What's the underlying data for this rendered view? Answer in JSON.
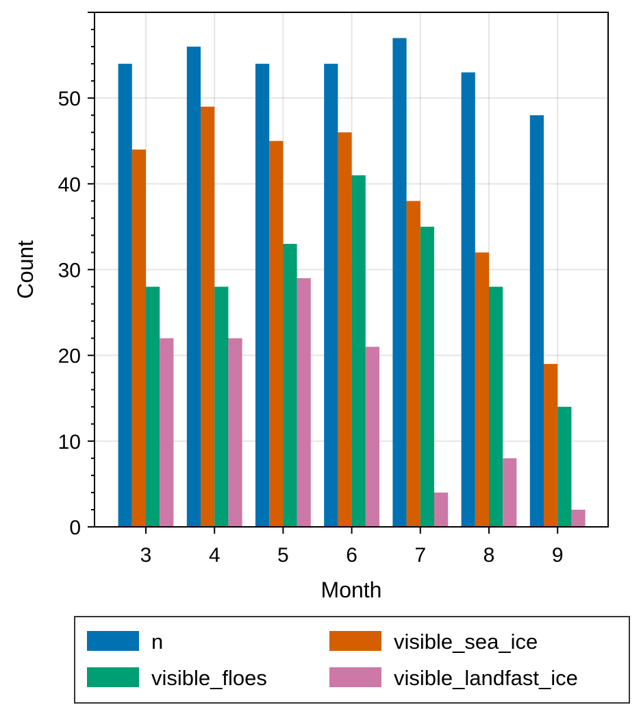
{
  "chart_data": {
    "type": "bar",
    "categories": [
      "3",
      "4",
      "5",
      "6",
      "7",
      "8",
      "9"
    ],
    "series": [
      {
        "name": "n",
        "color": "#0072b2",
        "values": [
          54,
          56,
          54,
          54,
          57,
          53,
          48
        ]
      },
      {
        "name": "visible_sea_ice",
        "color": "#d55e00",
        "values": [
          44,
          49,
          45,
          46,
          38,
          32,
          19
        ]
      },
      {
        "name": "visible_floes",
        "color": "#009e73",
        "values": [
          28,
          28,
          33,
          41,
          35,
          28,
          14
        ]
      },
      {
        "name": "visible_landfast_ice",
        "color": "#cc79a7",
        "values": [
          22,
          22,
          29,
          21,
          4,
          8,
          2
        ]
      }
    ],
    "xlabel": "Month",
    "ylabel": "Count",
    "ylim": [
      0,
      60
    ],
    "yticks": [
      0,
      10,
      20,
      30,
      40,
      50
    ],
    "grid": true,
    "legend_position": "below",
    "legend_order": [
      "n",
      "visible_sea_ice",
      "visible_floes",
      "visible_landfast_ice"
    ]
  }
}
